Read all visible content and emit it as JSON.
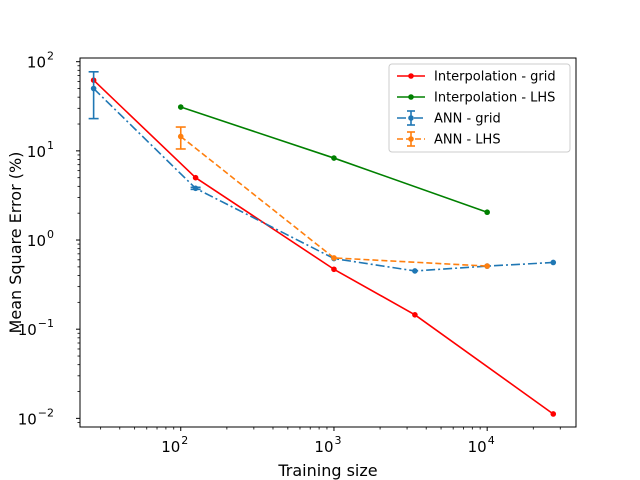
{
  "chart_data": {
    "type": "line",
    "title": "",
    "xlabel": "Training size",
    "ylabel": "Mean Square Error (%)",
    "xscale": "log",
    "yscale": "log",
    "xlim": [
      22,
      38000
    ],
    "ylim": [
      0.008,
      110
    ],
    "x_ticks": [
      {
        "value": 100,
        "base": "10",
        "exp": "2"
      },
      {
        "value": 1000,
        "base": "10",
        "exp": "3"
      },
      {
        "value": 10000,
        "base": "10",
        "exp": "4"
      }
    ],
    "y_ticks": [
      {
        "value": 0.01,
        "base": "10",
        "exp": "−2"
      },
      {
        "value": 0.1,
        "base": "10",
        "exp": "−1"
      },
      {
        "value": 1,
        "base": "10",
        "exp": "0"
      },
      {
        "value": 10,
        "base": "10",
        "exp": "1"
      },
      {
        "value": 100,
        "base": "10",
        "exp": "2"
      }
    ],
    "legend_position": "top-right",
    "series": [
      {
        "name": "Interpolation - grid",
        "color": "#ff0000",
        "dash": "solid",
        "x": [
          27,
          125,
          1000,
          3375,
          27000
        ],
        "y": [
          62,
          5.0,
          0.47,
          0.145,
          0.0112
        ]
      },
      {
        "name": "Interpolation - LHS",
        "color": "#008000",
        "dash": "solid",
        "x": [
          100,
          1000,
          10000
        ],
        "y": [
          31,
          8.3,
          2.05
        ]
      },
      {
        "name": "ANN - grid",
        "color": "#1f77b4",
        "dash": "dashdot",
        "errorbars": true,
        "x": [
          27,
          125,
          1000,
          3375,
          10000,
          27000
        ],
        "y": [
          50,
          3.8,
          0.62,
          0.45,
          0.51,
          0.56
        ],
        "yerr_low": [
          23,
          3.7,
          0.61,
          0.44,
          0.5,
          0.55
        ],
        "yerr_high": [
          77,
          3.9,
          0.63,
          0.46,
          0.52,
          0.57
        ]
      },
      {
        "name": "ANN - LHS",
        "color": "#ff7f0e",
        "dash": "dashed",
        "errorbars": true,
        "x": [
          100,
          1000,
          10000
        ],
        "y": [
          14.5,
          0.63,
          0.51
        ],
        "yerr_low": [
          10.5,
          0.62,
          0.5
        ],
        "yerr_high": [
          18.5,
          0.64,
          0.52
        ]
      }
    ]
  }
}
